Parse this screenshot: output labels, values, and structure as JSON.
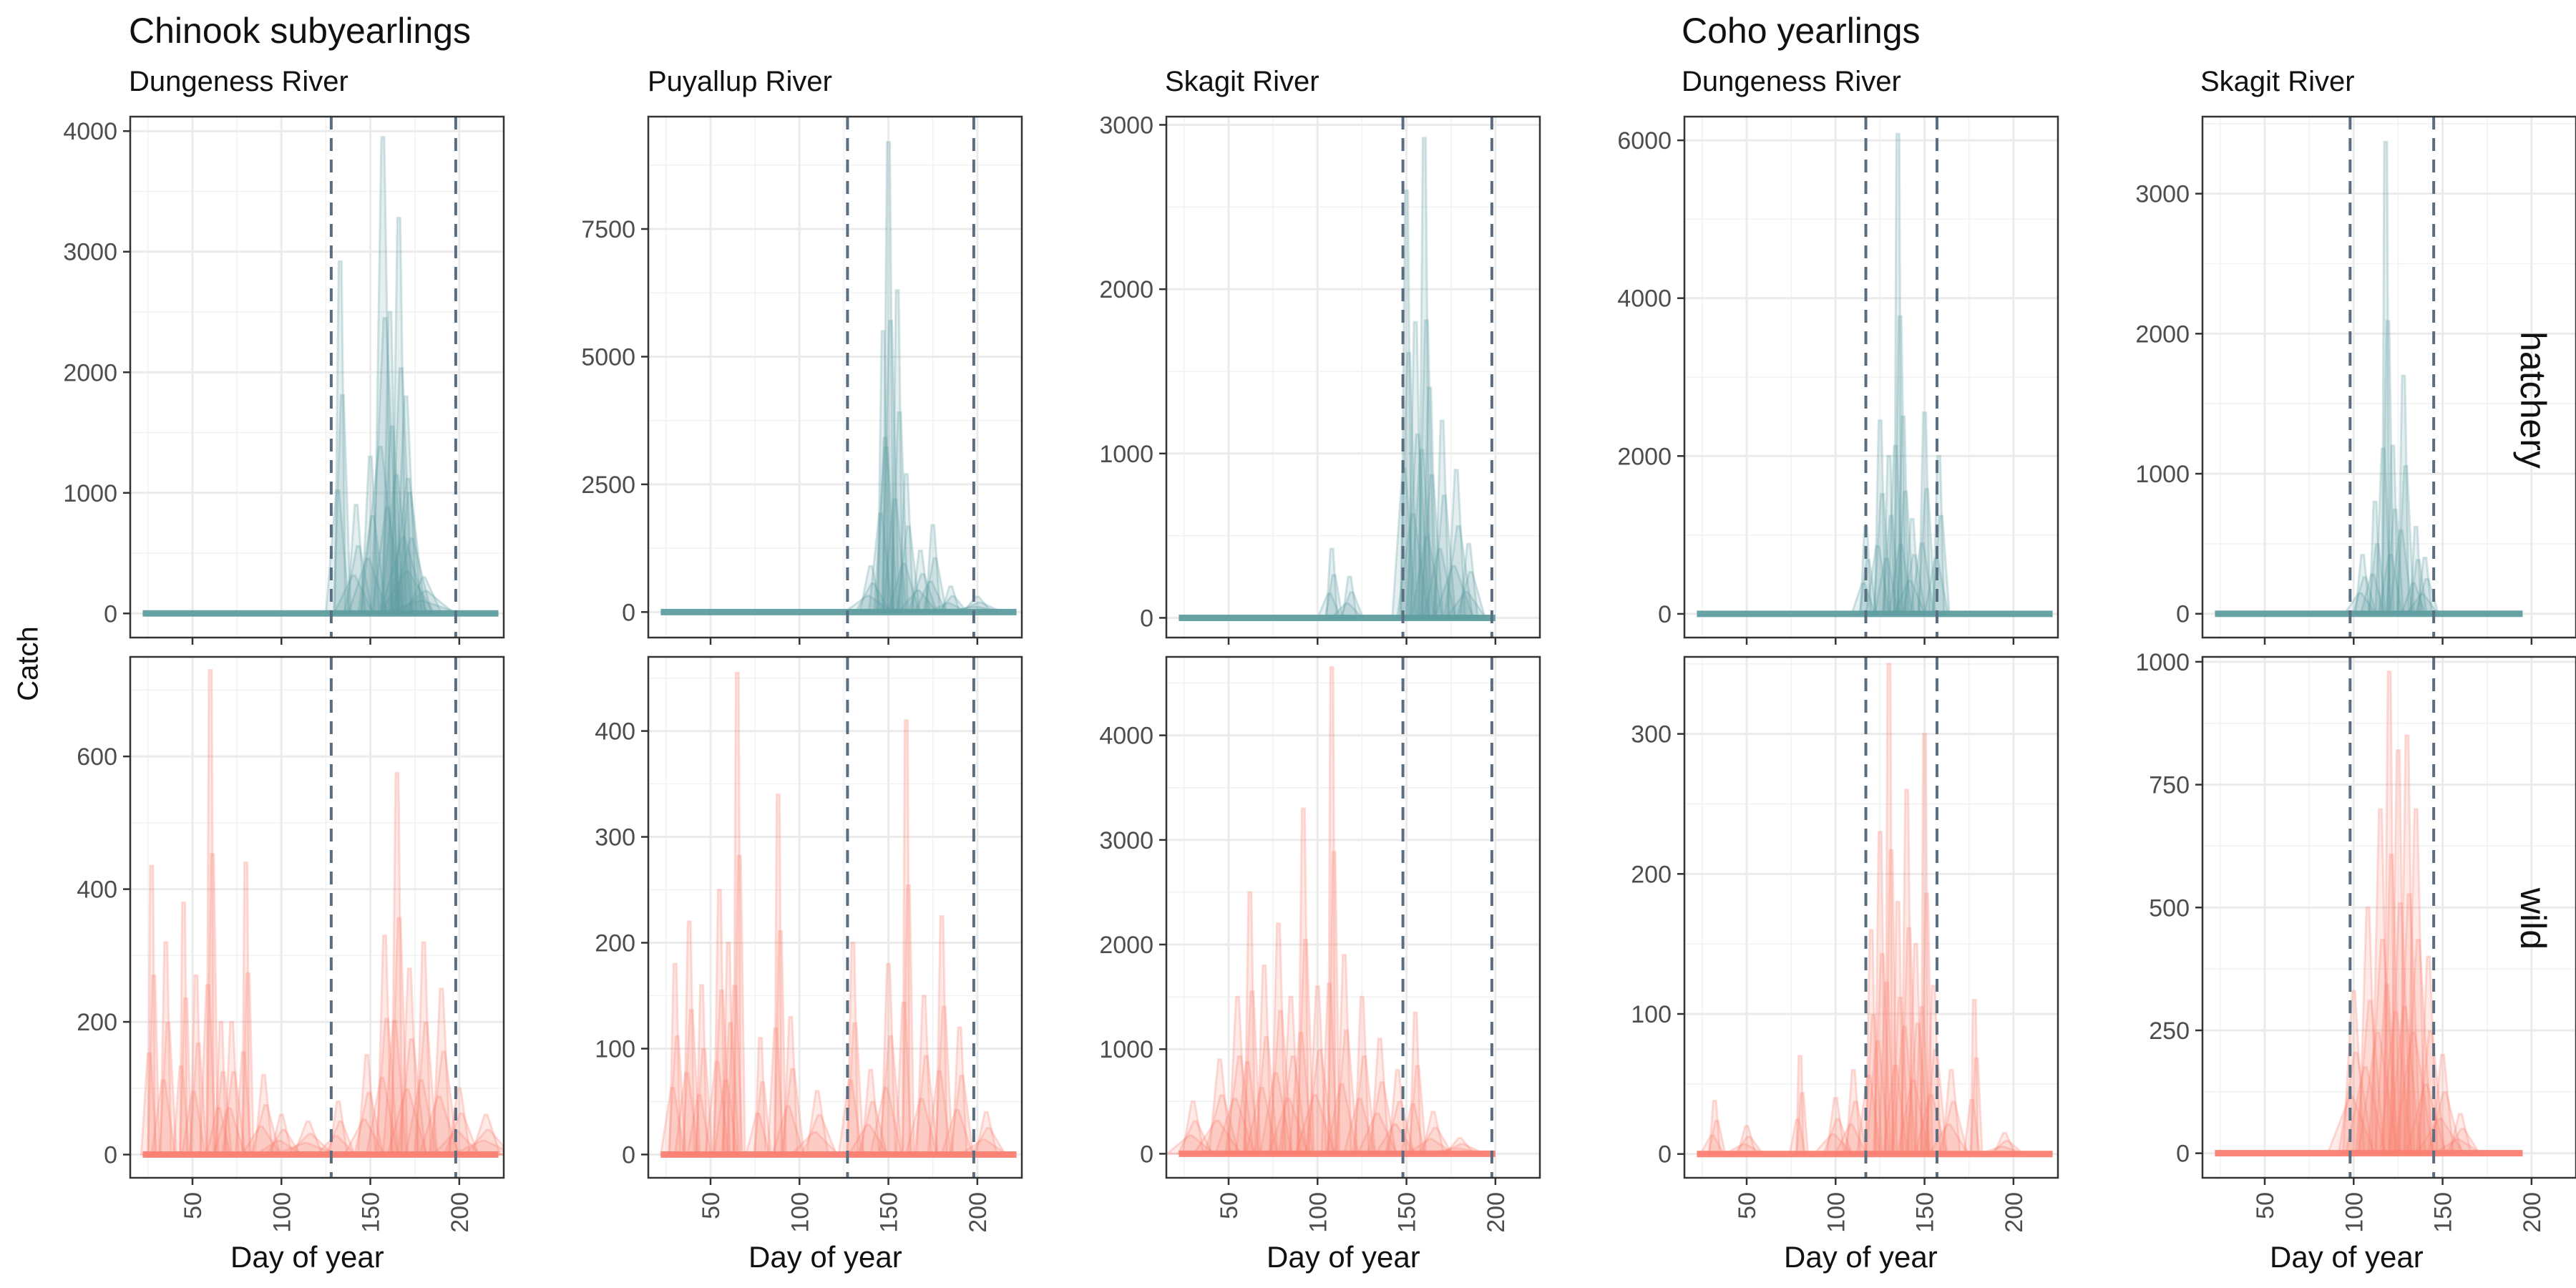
{
  "titles": {
    "group_left": "Chinook subyearlings",
    "group_right": "Coho yearlings",
    "y_axis": "Catch",
    "x_axis": "Day of year",
    "row_hatchery": "hatchery",
    "row_wild": "wild"
  },
  "colors": {
    "hatchery": "#5f9ea0",
    "wild": "#fa8072",
    "vline": "#5a6e82",
    "grid": "#ebebeb",
    "border": "#333333"
  },
  "chart_data": [
    {
      "type": "line",
      "group": "Chinook subyearlings",
      "panel": "Dungeness River",
      "origin": "hatchery",
      "xlim": [
        15,
        225
      ],
      "ylim": [
        -200,
        4120
      ],
      "x_ticks": [
        50,
        100,
        150,
        200
      ],
      "y_ticks": [
        0,
        1000,
        2000,
        3000,
        4000
      ],
      "y_tick_labels": [
        "0",
        "1000",
        "2000",
        "3000",
        "4000"
      ],
      "vlines": [
        128,
        198
      ],
      "baseline_x": [
        22,
        222
      ],
      "peaks": [
        [
          133,
          2920,
          3
        ],
        [
          142,
          900,
          5
        ],
        [
          150,
          1300,
          5
        ],
        [
          157,
          3950,
          5
        ],
        [
          161,
          2500,
          4
        ],
        [
          166,
          3280,
          4
        ],
        [
          170,
          1800,
          6
        ],
        [
          172,
          1000,
          7
        ],
        [
          180,
          300,
          10
        ]
      ]
    },
    {
      "type": "line",
      "group": "Chinook subyearlings",
      "panel": "Puyallup River",
      "origin": "hatchery",
      "xlim": [
        15,
        225
      ],
      "ylim": [
        -500,
        9700
      ],
      "x_ticks": [
        50,
        100,
        150,
        200
      ],
      "y_ticks": [
        0,
        2500,
        5000,
        7500
      ],
      "y_tick_labels": [
        "0",
        "2500",
        "5000",
        "7500"
      ],
      "vlines": [
        127,
        198
      ],
      "baseline_x": [
        22,
        222
      ],
      "peaks": [
        [
          140,
          900,
          6
        ],
        [
          147,
          5500,
          3
        ],
        [
          150,
          9200,
          3
        ],
        [
          155,
          6300,
          3
        ],
        [
          160,
          2700,
          4
        ],
        [
          168,
          1200,
          5
        ],
        [
          175,
          1700,
          4
        ],
        [
          185,
          500,
          5
        ],
        [
          200,
          300,
          8
        ]
      ]
    },
    {
      "type": "line",
      "group": "Chinook subyearlings",
      "panel": "Skagit River",
      "origin": "hatchery",
      "xlim": [
        15,
        225
      ],
      "ylim": [
        -120,
        3050
      ],
      "x_ticks": [
        50,
        100,
        150,
        200
      ],
      "y_ticks": [
        0,
        1000,
        2000,
        3000
      ],
      "y_tick_labels": [
        "0",
        "1000",
        "2000",
        "3000"
      ],
      "vlines": [
        148,
        198
      ],
      "baseline_x": [
        22,
        200
      ],
      "peaks": [
        [
          108,
          420,
          3
        ],
        [
          118,
          250,
          4
        ],
        [
          150,
          2600,
          3
        ],
        [
          155,
          1800,
          4
        ],
        [
          160,
          2920,
          3
        ],
        [
          163,
          1400,
          4
        ],
        [
          170,
          1200,
          4
        ],
        [
          178,
          900,
          5
        ],
        [
          185,
          450,
          5
        ]
      ]
    },
    {
      "type": "line",
      "group": "Coho yearlings",
      "panel": "Dungeness River",
      "origin": "hatchery",
      "xlim": [
        15,
        225
      ],
      "ylim": [
        -300,
        6300
      ],
      "x_ticks": [
        50,
        100,
        150,
        200
      ],
      "y_ticks": [
        0,
        2000,
        4000,
        6000
      ],
      "y_tick_labels": [
        "0",
        "2000",
        "4000",
        "6000"
      ],
      "vlines": [
        117,
        157
      ],
      "baseline_x": [
        22,
        222
      ],
      "peaks": [
        [
          117,
          1100,
          3
        ],
        [
          125,
          2450,
          3
        ],
        [
          130,
          2000,
          3
        ],
        [
          135,
          6080,
          2
        ],
        [
          138,
          2500,
          3
        ],
        [
          143,
          1200,
          4
        ],
        [
          150,
          2550,
          3
        ],
        [
          158,
          2000,
          3
        ]
      ]
    },
    {
      "type": "line",
      "group": "Coho yearlings",
      "panel": "Skagit River",
      "origin": "hatchery",
      "xlim": [
        15,
        225
      ],
      "ylim": [
        -170,
        3550
      ],
      "x_ticks": [
        50,
        100,
        150,
        200
      ],
      "y_ticks": [
        0,
        1000,
        2000,
        3000
      ],
      "y_tick_labels": [
        "0",
        "1000",
        "2000",
        "3000"
      ],
      "vlines": [
        98,
        145
      ],
      "baseline_x": [
        22,
        195
      ],
      "peaks": [
        [
          105,
          420,
          4
        ],
        [
          112,
          800,
          3
        ],
        [
          118,
          3370,
          2
        ],
        [
          122,
          1200,
          3
        ],
        [
          128,
          1700,
          3
        ],
        [
          135,
          620,
          3
        ],
        [
          140,
          400,
          4
        ]
      ]
    },
    {
      "type": "line",
      "group": "Chinook subyearlings",
      "panel": "Dungeness River",
      "origin": "wild",
      "xlim": [
        15,
        225
      ],
      "ylim": [
        -35,
        750
      ],
      "x_ticks": [
        50,
        100,
        150,
        200
      ],
      "x_tick_labels": [
        "50",
        "100",
        "150",
        "200"
      ],
      "y_ticks": [
        0,
        200,
        400,
        600
      ],
      "y_tick_labels": [
        "0",
        "200",
        "400",
        "600"
      ],
      "vlines": [
        128,
        198
      ],
      "baseline_x": [
        22,
        222
      ],
      "peaks": [
        [
          27,
          435,
          2
        ],
        [
          35,
          320,
          3
        ],
        [
          45,
          380,
          2
        ],
        [
          52,
          270,
          3
        ],
        [
          60,
          730,
          2
        ],
        [
          66,
          200,
          3
        ],
        [
          72,
          200,
          4
        ],
        [
          80,
          440,
          2
        ],
        [
          90,
          120,
          5
        ],
        [
          100,
          60,
          6
        ],
        [
          115,
          50,
          8
        ],
        [
          132,
          80,
          5
        ],
        [
          148,
          150,
          5
        ],
        [
          158,
          330,
          4
        ],
        [
          165,
          575,
          3
        ],
        [
          172,
          280,
          5
        ],
        [
          180,
          320,
          4
        ],
        [
          190,
          250,
          5
        ],
        [
          200,
          100,
          6
        ],
        [
          215,
          60,
          8
        ]
      ]
    },
    {
      "type": "line",
      "group": "Chinook subyearlings",
      "panel": "Puyallup River",
      "origin": "wild",
      "xlim": [
        15,
        225
      ],
      "ylim": [
        -22,
        470
      ],
      "x_ticks": [
        50,
        100,
        150,
        200
      ],
      "x_tick_labels": [
        "50",
        "100",
        "150",
        "200"
      ],
      "y_ticks": [
        0,
        100,
        200,
        300,
        400
      ],
      "y_tick_labels": [
        "0",
        "100",
        "200",
        "300",
        "400"
      ],
      "vlines": [
        127,
        198
      ],
      "baseline_x": [
        22,
        222
      ],
      "peaks": [
        [
          30,
          180,
          3
        ],
        [
          38,
          220,
          3
        ],
        [
          45,
          160,
          3
        ],
        [
          55,
          250,
          3
        ],
        [
          60,
          200,
          3
        ],
        [
          65,
          455,
          2
        ],
        [
          78,
          110,
          3
        ],
        [
          88,
          340,
          2
        ],
        [
          95,
          130,
          4
        ],
        [
          110,
          60,
          6
        ],
        [
          130,
          200,
          3
        ],
        [
          140,
          80,
          5
        ],
        [
          150,
          180,
          4
        ],
        [
          160,
          410,
          2
        ],
        [
          170,
          150,
          4
        ],
        [
          180,
          225,
          3
        ],
        [
          190,
          120,
          4
        ],
        [
          205,
          40,
          6
        ]
      ]
    },
    {
      "type": "line",
      "group": "Chinook subyearlings",
      "panel": "Skagit River",
      "origin": "wild",
      "xlim": [
        15,
        225
      ],
      "ylim": [
        -230,
        4750
      ],
      "x_ticks": [
        50,
        100,
        150,
        200
      ],
      "x_tick_labels": [
        "50",
        "100",
        "150",
        "200"
      ],
      "y_ticks": [
        0,
        1000,
        2000,
        3000,
        4000
      ],
      "y_tick_labels": [
        "0",
        "1000",
        "2000",
        "3000",
        "4000"
      ],
      "vlines": [
        148,
        198
      ],
      "baseline_x": [
        22,
        200
      ],
      "peaks": [
        [
          30,
          500,
          6
        ],
        [
          45,
          900,
          6
        ],
        [
          55,
          1500,
          5
        ],
        [
          62,
          2500,
          3
        ],
        [
          70,
          1800,
          4
        ],
        [
          78,
          2200,
          4
        ],
        [
          85,
          1500,
          5
        ],
        [
          92,
          3300,
          3
        ],
        [
          100,
          1600,
          5
        ],
        [
          108,
          4650,
          2
        ],
        [
          115,
          1900,
          4
        ],
        [
          125,
          1500,
          4
        ],
        [
          135,
          1100,
          5
        ],
        [
          145,
          800,
          5
        ],
        [
          155,
          1350,
          3
        ],
        [
          165,
          400,
          6
        ],
        [
          180,
          150,
          8
        ]
      ]
    },
    {
      "type": "line",
      "group": "Coho yearlings",
      "panel": "Dungeness River",
      "origin": "wild",
      "xlim": [
        15,
        225
      ],
      "ylim": [
        -17,
        355
      ],
      "x_ticks": [
        50,
        100,
        150,
        200
      ],
      "x_tick_labels": [
        "50",
        "100",
        "150",
        "200"
      ],
      "y_ticks": [
        0,
        100,
        200,
        300
      ],
      "y_tick_labels": [
        "0",
        "100",
        "200",
        "300"
      ],
      "vlines": [
        117,
        157
      ],
      "baseline_x": [
        22,
        222
      ],
      "peaks": [
        [
          32,
          38,
          3
        ],
        [
          50,
          20,
          5
        ],
        [
          80,
          70,
          2
        ],
        [
          100,
          40,
          5
        ],
        [
          110,
          60,
          4
        ],
        [
          120,
          160,
          3
        ],
        [
          125,
          230,
          3
        ],
        [
          130,
          350,
          2
        ],
        [
          135,
          180,
          3
        ],
        [
          140,
          260,
          3
        ],
        [
          145,
          150,
          4
        ],
        [
          150,
          300,
          2
        ],
        [
          155,
          120,
          4
        ],
        [
          165,
          60,
          5
        ],
        [
          178,
          110,
          2
        ],
        [
          195,
          15,
          6
        ]
      ]
    },
    {
      "type": "line",
      "group": "Coho yearlings",
      "panel": "Skagit River",
      "origin": "wild",
      "xlim": [
        15,
        225
      ],
      "ylim": [
        -50,
        1010
      ],
      "x_ticks": [
        50,
        100,
        150,
        200
      ],
      "x_tick_labels": [
        "50",
        "100",
        "150",
        "200"
      ],
      "y_ticks": [
        0,
        250,
        500,
        750,
        1000
      ],
      "y_tick_labels": [
        "0",
        "250",
        "500",
        "750",
        "1000"
      ],
      "vlines": [
        98,
        145
      ],
      "baseline_x": [
        22,
        195
      ],
      "peaks": [
        [
          100,
          330,
          6
        ],
        [
          108,
          500,
          5
        ],
        [
          115,
          700,
          5
        ],
        [
          120,
          980,
          3
        ],
        [
          125,
          820,
          4
        ],
        [
          130,
          850,
          4
        ],
        [
          135,
          700,
          5
        ],
        [
          142,
          400,
          5
        ],
        [
          150,
          200,
          6
        ],
        [
          160,
          80,
          6
        ]
      ]
    }
  ]
}
